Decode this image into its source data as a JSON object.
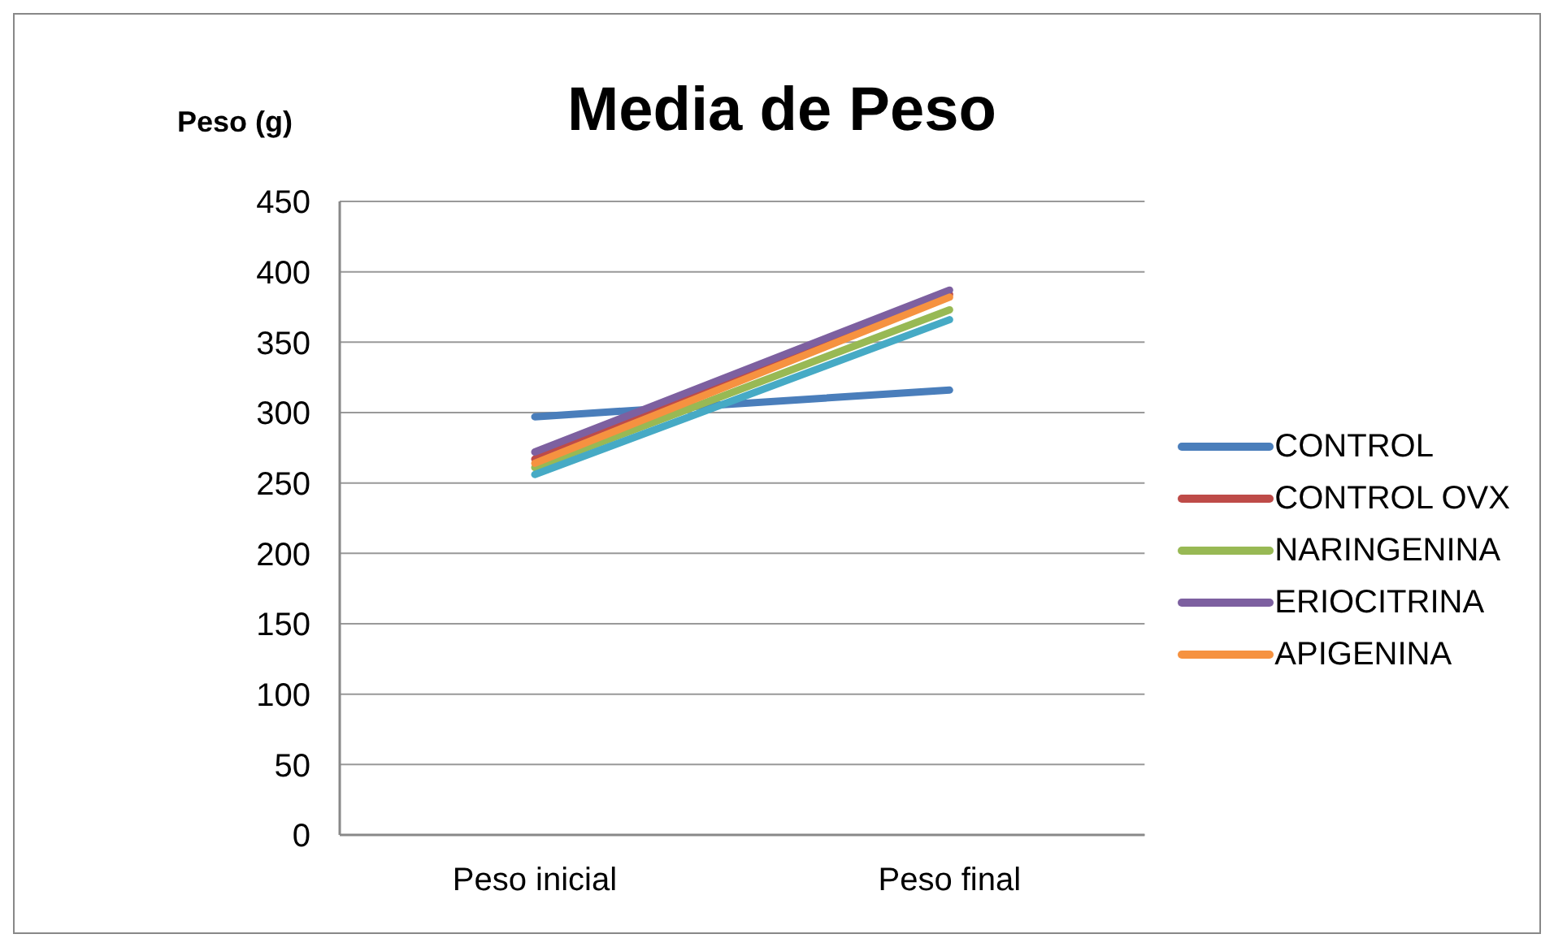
{
  "chart_data": {
    "type": "line",
    "title": "Media de Peso",
    "ylabel": "Peso (g)",
    "categories": [
      "Peso inicial",
      "Peso final"
    ],
    "series": [
      {
        "name": "CONTROL",
        "color": "#4a7ebb",
        "values": [
          297,
          316
        ]
      },
      {
        "name": "CONTROL OVX",
        "color": "#be4b48",
        "values": [
          267,
          384
        ]
      },
      {
        "name": "NARINGENINA",
        "color": "#98b954",
        "values": [
          261,
          373
        ]
      },
      {
        "name": "ERIOCITRINA",
        "color": "#7d60a0",
        "values": [
          272,
          387
        ]
      },
      {
        "color": "#46aac5",
        "values": [
          256,
          366
        ]
      },
      {
        "name": "APIGENINA",
        "color": "#f69240",
        "values": [
          264,
          382
        ]
      }
    ],
    "ylim": [
      0,
      450
    ],
    "yticks": [
      0,
      50,
      100,
      150,
      200,
      250,
      300,
      350,
      400,
      450
    ],
    "grid": "y",
    "legend": "right",
    "marker": "none",
    "line_style": "solid"
  }
}
